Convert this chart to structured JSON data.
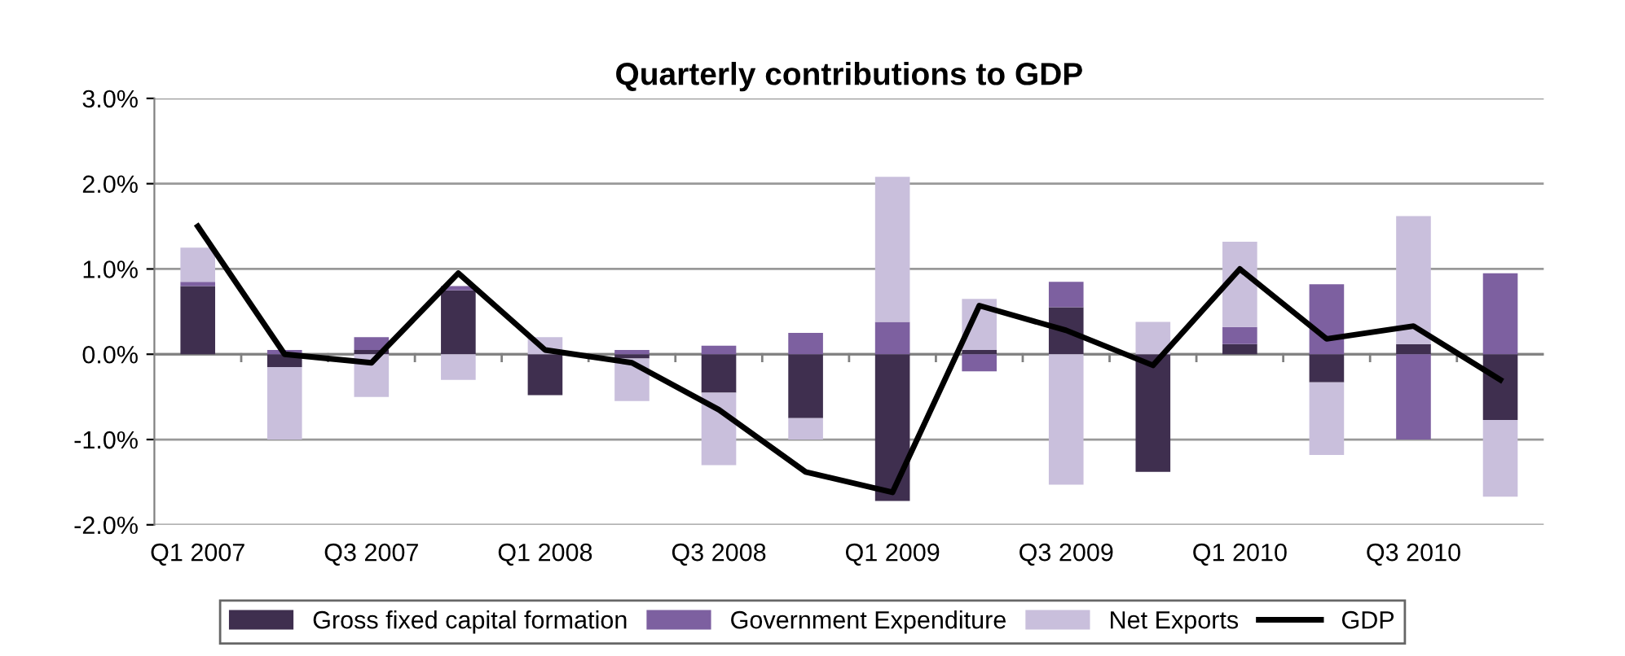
{
  "chart_data": {
    "type": "bar",
    "stacked": true,
    "title": "Quarterly contributions to GDP",
    "categories": [
      "Q1 2007",
      null,
      "Q3 2007",
      null,
      "Q1 2008",
      null,
      "Q3 2008",
      null,
      "Q1 2009",
      null,
      "Q3 2009",
      null,
      "Q1 2010",
      null,
      "Q3 2010",
      null
    ],
    "series": [
      {
        "name": "Gross fixed capital formation",
        "color": "#3f2f4f",
        "values": [
          0.8,
          -0.15,
          0.05,
          0.75,
          -0.48,
          -0.05,
          -0.45,
          -0.75,
          -1.72,
          0.05,
          0.55,
          -1.38,
          0.12,
          -0.33,
          0.12,
          -0.77
        ]
      },
      {
        "name": "Government Expenditure",
        "color": "#7d60a0",
        "values": [
          0.05,
          0.05,
          0.15,
          0.05,
          0.0,
          0.05,
          0.1,
          0.25,
          0.38,
          -0.2,
          0.3,
          0.0,
          0.2,
          0.82,
          -1.0,
          0.95
        ]
      },
      {
        "name": "Net Exports",
        "color": "#c9bfdc",
        "values": [
          0.4,
          -0.85,
          -0.5,
          -0.3,
          0.2,
          -0.5,
          -0.85,
          -0.25,
          1.7,
          0.6,
          -1.53,
          0.38,
          1.0,
          -0.85,
          1.5,
          -0.9
        ]
      },
      {
        "name": "GDP",
        "type": "line",
        "color": "#000000",
        "values": [
          1.5,
          0.0,
          -0.1,
          0.95,
          0.05,
          -0.1,
          -0.65,
          -1.38,
          -1.62,
          0.57,
          0.28,
          -0.13,
          1.0,
          0.18,
          0.33,
          -0.3
        ]
      }
    ],
    "ylim": [
      -2,
      3
    ],
    "yticks": [
      {
        "value": -2,
        "label": "-2.0%"
      },
      {
        "value": -1,
        "label": "-1.0%"
      },
      {
        "value": 0,
        "label": "0.0%"
      },
      {
        "value": 1,
        "label": "1.0%"
      },
      {
        "value": 2,
        "label": "2.0%"
      },
      {
        "value": 3,
        "label": "3.0%"
      }
    ],
    "grid": "y",
    "legend": "bottom",
    "marker": "none",
    "line_style": "solid"
  }
}
